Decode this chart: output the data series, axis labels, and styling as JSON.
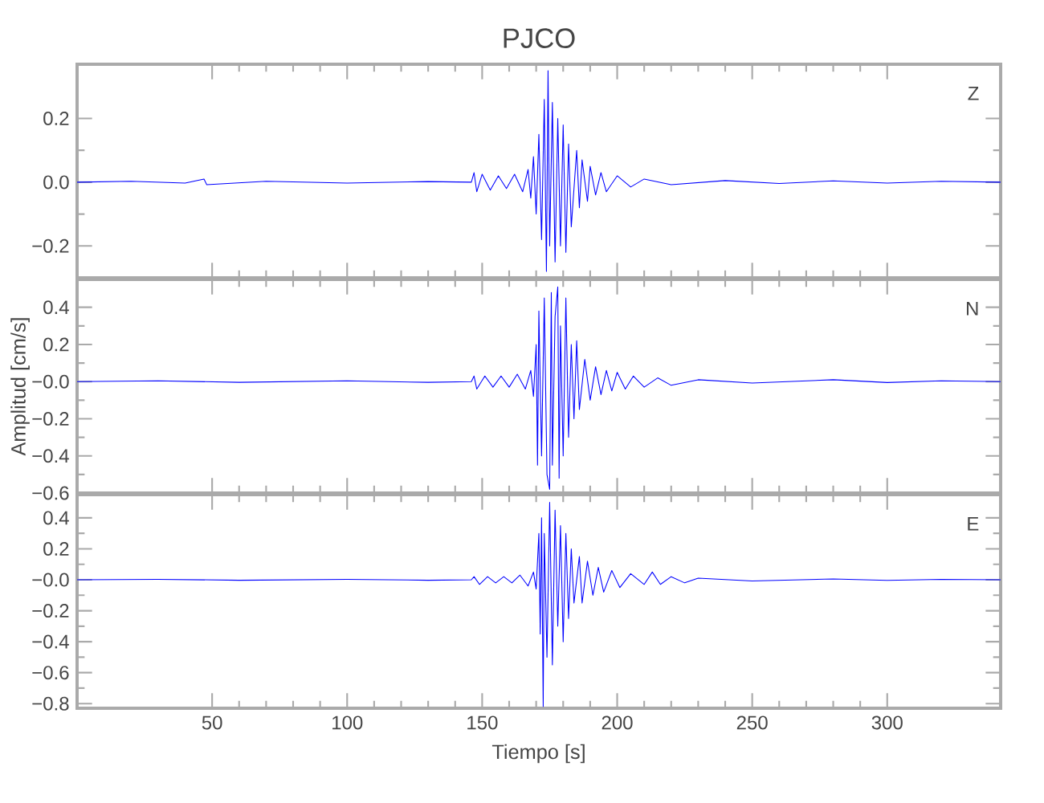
{
  "chart_data": [
    {
      "type": "line",
      "title": "PJCO",
      "xlim": [
        0,
        342
      ],
      "ylim": [
        -0.3,
        0.37
      ],
      "tick_labels": "y",
      "xticks": [
        50,
        100,
        150,
        200,
        250,
        300
      ],
      "yticks": [
        {
          "value": -0.2,
          "label": "−0.2"
        },
        {
          "value": 0,
          "label": "0.0"
        },
        {
          "value": 0.2,
          "label": "0.2"
        }
      ],
      "series": [
        {
          "name": "Z",
          "color": "#0000ff",
          "x": [
            0,
            20,
            40,
            47,
            48,
            70,
            100,
            130,
            146,
            147,
            148,
            150,
            153,
            156,
            159,
            162,
            165,
            167,
            168,
            169,
            170,
            171,
            172,
            173,
            173.8,
            174.4,
            175,
            176,
            177,
            178,
            179,
            180,
            181,
            182,
            183,
            185,
            186,
            187,
            189,
            190,
            192,
            194,
            196,
            200,
            205,
            210,
            220,
            240,
            260,
            280,
            300,
            320,
            342
          ],
          "values": [
            0,
            0.003,
            -0.003,
            0.01,
            -0.008,
            0.003,
            -0.003,
            0.002,
            0,
            0.03,
            -0.03,
            0.025,
            -0.025,
            0.02,
            -0.02,
            0.025,
            -0.03,
            0.04,
            -0.05,
            0.08,
            -0.1,
            0.15,
            -0.18,
            0.26,
            -0.28,
            0.35,
            -0.2,
            0.25,
            -0.25,
            0.2,
            -0.2,
            0.18,
            -0.22,
            0.12,
            -0.14,
            0.1,
            -0.08,
            0.07,
            -0.06,
            0.05,
            -0.04,
            0.03,
            -0.03,
            0.02,
            -0.015,
            0.01,
            -0.008,
            0.005,
            -0.004,
            0.004,
            -0.003,
            0.003,
            0
          ]
        }
      ]
    },
    {
      "type": "line",
      "ylabel": "Amplitud [cm/s]",
      "xlim": [
        0,
        342
      ],
      "ylim": [
        -0.6,
        0.55
      ],
      "tick_labels": "y",
      "xticks": [
        50,
        100,
        150,
        200,
        250,
        300
      ],
      "yticks": [
        {
          "value": -0.6,
          "label": "−0.6"
        },
        {
          "value": -0.4,
          "label": "−0.4"
        },
        {
          "value": -0.2,
          "label": "−0.2"
        },
        {
          "value": 0,
          "label": "−0.0"
        },
        {
          "value": 0.2,
          "label": "0.2"
        },
        {
          "value": 0.4,
          "label": "0.4"
        }
      ],
      "series": [
        {
          "name": "N",
          "color": "#0000ff",
          "x": [
            0,
            30,
            60,
            100,
            130,
            146,
            147,
            148,
            151,
            154,
            157,
            160,
            163,
            166,
            168,
            169,
            170,
            170.5,
            171,
            172,
            173,
            174,
            175,
            175.6,
            176,
            177,
            178,
            178.5,
            179,
            180,
            181,
            182,
            183,
            184,
            185,
            186,
            188,
            190,
            192,
            194,
            196,
            198,
            200,
            203,
            206,
            210,
            215,
            220,
            230,
            250,
            280,
            300,
            320,
            342
          ],
          "values": [
            0,
            0.004,
            -0.004,
            0.004,
            -0.004,
            0,
            0.03,
            -0.04,
            0.03,
            -0.03,
            0.03,
            -0.03,
            0.04,
            -0.04,
            0.06,
            -0.08,
            0.2,
            -0.45,
            0.38,
            -0.4,
            0.45,
            -0.5,
            -0.58,
            0.48,
            -0.45,
            0.35,
            0.51,
            -0.52,
            0.3,
            -0.4,
            0.45,
            -0.3,
            0.2,
            -0.2,
            0.22,
            -0.15,
            0.12,
            -0.1,
            0.08,
            -0.07,
            0.06,
            -0.05,
            0.05,
            -0.04,
            0.03,
            -0.03,
            0.02,
            -0.02,
            0.01,
            -0.008,
            0.01,
            -0.005,
            0.004,
            0
          ]
        }
      ]
    },
    {
      "type": "line",
      "xlabel": "Tiempo [s]",
      "xlim": [
        0,
        342
      ],
      "ylim": [
        -0.83,
        0.55
      ],
      "xticks": [
        50,
        100,
        150,
        200,
        250,
        300
      ],
      "yticks": [
        {
          "value": -0.8,
          "label": "−0.8"
        },
        {
          "value": -0.6,
          "label": "−0.6"
        },
        {
          "value": -0.4,
          "label": "−0.4"
        },
        {
          "value": -0.2,
          "label": "−0.2"
        },
        {
          "value": 0,
          "label": "−0.0"
        },
        {
          "value": 0.2,
          "label": "0.2"
        },
        {
          "value": 0.4,
          "label": "0.4"
        }
      ],
      "series": [
        {
          "name": "E",
          "color": "#0000ff",
          "x": [
            0,
            30,
            60,
            100,
            130,
            146,
            147,
            149,
            152,
            155,
            158,
            161,
            164,
            167,
            169,
            170,
            171,
            171.5,
            172,
            172.6,
            173,
            174,
            175,
            176,
            177,
            178,
            179,
            180,
            181,
            182,
            183,
            184,
            186,
            187,
            189,
            191,
            193,
            195,
            198,
            201,
            205,
            210,
            213,
            216,
            220,
            225,
            230,
            250,
            280,
            300,
            320,
            342
          ],
          "values": [
            0,
            0.003,
            -0.003,
            0.003,
            -0.003,
            0,
            0.02,
            -0.03,
            0.02,
            -0.02,
            0.02,
            -0.02,
            0.03,
            -0.04,
            0.05,
            -0.06,
            0.3,
            -0.35,
            0.4,
            -0.82,
            0.3,
            -0.5,
            0.5,
            -0.55,
            0.45,
            -0.3,
            0.35,
            -0.4,
            0.3,
            -0.25,
            0.2,
            -0.15,
            0.15,
            -0.15,
            0.12,
            -0.1,
            0.08,
            -0.08,
            0.06,
            -0.05,
            0.04,
            -0.03,
            0.05,
            -0.03,
            0.02,
            -0.02,
            0.01,
            -0.008,
            0.005,
            -0.004,
            0.003,
            0
          ]
        }
      ]
    }
  ]
}
